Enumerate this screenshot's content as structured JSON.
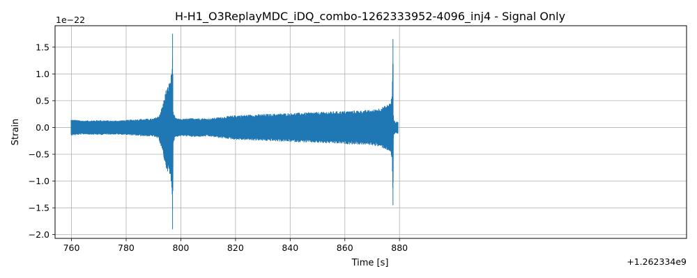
{
  "chart_data": {
    "type": "line",
    "title": "H-H1_O3ReplayMDC_iDQ_combo-1262333952-4096_inj4 - Signal Only",
    "xlabel": "Time [s]",
    "ylabel": "Strain",
    "x_offset_label": "+1.262334e9",
    "y_multiplier_label": "1e−22",
    "xlim": [
      754,
      985
    ],
    "ylim": [
      -2.07,
      1.9
    ],
    "x_ticks": [
      760,
      780,
      800,
      820,
      840,
      860,
      880
    ],
    "x_tick_labels": [
      "760",
      "780",
      "800",
      "820",
      "840",
      "860",
      "880"
    ],
    "y_ticks": [
      -2.0,
      -1.5,
      -1.0,
      -0.5,
      0.0,
      0.5,
      1.0,
      1.5
    ],
    "y_tick_labels": [
      "−2.0",
      "−1.5",
      "−1.0",
      "−0.5",
      "0.0",
      "0.5",
      "1.0",
      "1.5"
    ],
    "grid": true,
    "line_color": "#1f77b4",
    "series": [
      {
        "envelope_upper": {
          "x": [
            759.8,
            765,
            770,
            775,
            780,
            785,
            790,
            792,
            793.5,
            794.5,
            795.5,
            796.3,
            796.8,
            797.0,
            797.2,
            798,
            800,
            805,
            810,
            815,
            820,
            825,
            830,
            835,
            840,
            845,
            850,
            855,
            860,
            865,
            870,
            873,
            875,
            876.5,
            877.3,
            877.6,
            877.8,
            878.5,
            879.5
          ],
          "values": [
            0.15,
            0.13,
            0.14,
            0.13,
            0.14,
            0.16,
            0.17,
            0.22,
            0.45,
            0.7,
            0.8,
            0.95,
            1.1,
            1.75,
            0.3,
            0.18,
            0.16,
            0.18,
            0.17,
            0.2,
            0.23,
            0.24,
            0.25,
            0.26,
            0.27,
            0.28,
            0.29,
            0.3,
            0.31,
            0.32,
            0.33,
            0.37,
            0.41,
            0.46,
            0.6,
            1.65,
            0.15,
            0.1,
            0.12
          ]
        },
        "envelope_lower": {
          "x": [
            759.8,
            765,
            770,
            775,
            780,
            785,
            790,
            792,
            793.5,
            794.5,
            795.5,
            796.3,
            796.8,
            797.0,
            797.2,
            798,
            800,
            805,
            810,
            815,
            820,
            825,
            830,
            835,
            840,
            845,
            850,
            855,
            860,
            865,
            870,
            873,
            875,
            876.5,
            877.3,
            877.6,
            877.8,
            878.5,
            879.5
          ],
          "values": [
            -0.15,
            -0.13,
            -0.14,
            -0.13,
            -0.14,
            -0.16,
            -0.17,
            -0.22,
            -0.5,
            -0.75,
            -0.85,
            -1.0,
            -1.2,
            -1.9,
            -0.3,
            -0.18,
            -0.16,
            -0.18,
            -0.17,
            -0.2,
            -0.23,
            -0.24,
            -0.25,
            -0.26,
            -0.27,
            -0.28,
            -0.29,
            -0.3,
            -0.31,
            -0.32,
            -0.33,
            -0.37,
            -0.41,
            -0.46,
            -0.6,
            -1.45,
            -0.15,
            -0.1,
            -0.12
          ]
        }
      }
    ]
  }
}
